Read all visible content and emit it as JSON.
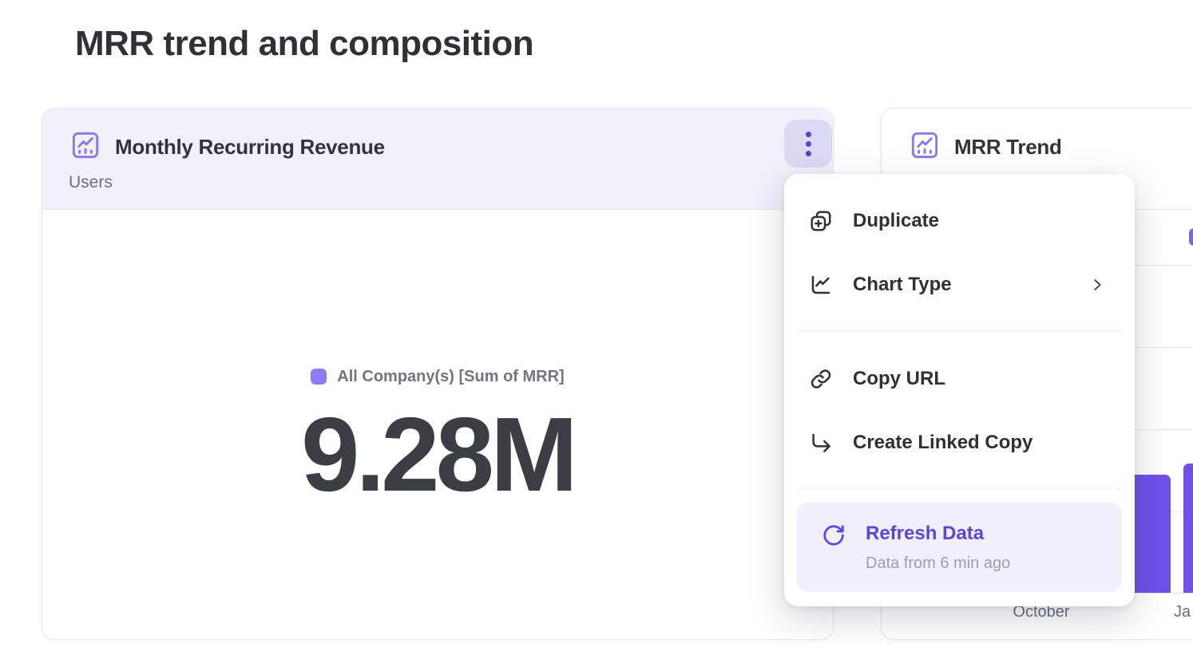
{
  "page": {
    "title": "MRR trend and composition"
  },
  "mrr_card": {
    "title": "Monthly Recurring Revenue",
    "subtitle": "Users",
    "legend": "All Company(s) [Sum of MRR]",
    "value": "9.28M"
  },
  "trend_card": {
    "title": "MRR Trend",
    "x_labels": [
      "October",
      "Ja"
    ]
  },
  "menu": {
    "items": [
      {
        "label": "Duplicate"
      },
      {
        "label": "Chart Type",
        "has_submenu": true
      },
      {
        "label": "Copy URL"
      },
      {
        "label": "Create Linked Copy"
      },
      {
        "label": "Refresh Data",
        "sublabel": "Data from 6 min ago",
        "active": true
      }
    ]
  },
  "colors": {
    "accent_purple": "#5b45e0",
    "icon_purple": "#8a76f0",
    "bar_purple": "#6f51e8",
    "legend_swatch": "#8d7cf4",
    "header_lavender": "#f1f0fb",
    "kebab_bg": "#dcd9f5",
    "text_dark": "#2e2f37",
    "text_gray": "#6b6f7b"
  },
  "chart_data": [
    {
      "type": "big_number",
      "title": "Monthly Recurring Revenue",
      "subtitle": "Users",
      "legend": [
        "All Company(s) [Sum of MRR]"
      ],
      "value": "9.28M"
    },
    {
      "type": "bar",
      "title": "MRR Trend",
      "x_tick_labels_visible": [
        "October",
        "Ja"
      ],
      "y_tick_labels_visible": false,
      "gridlines": 4,
      "visible_bars": [
        {
          "x_tick": null,
          "value_gridline_units": 1.44
        },
        {
          "x_tick": "Ja",
          "value_gridline_units": 1.57
        }
      ]
    }
  ]
}
